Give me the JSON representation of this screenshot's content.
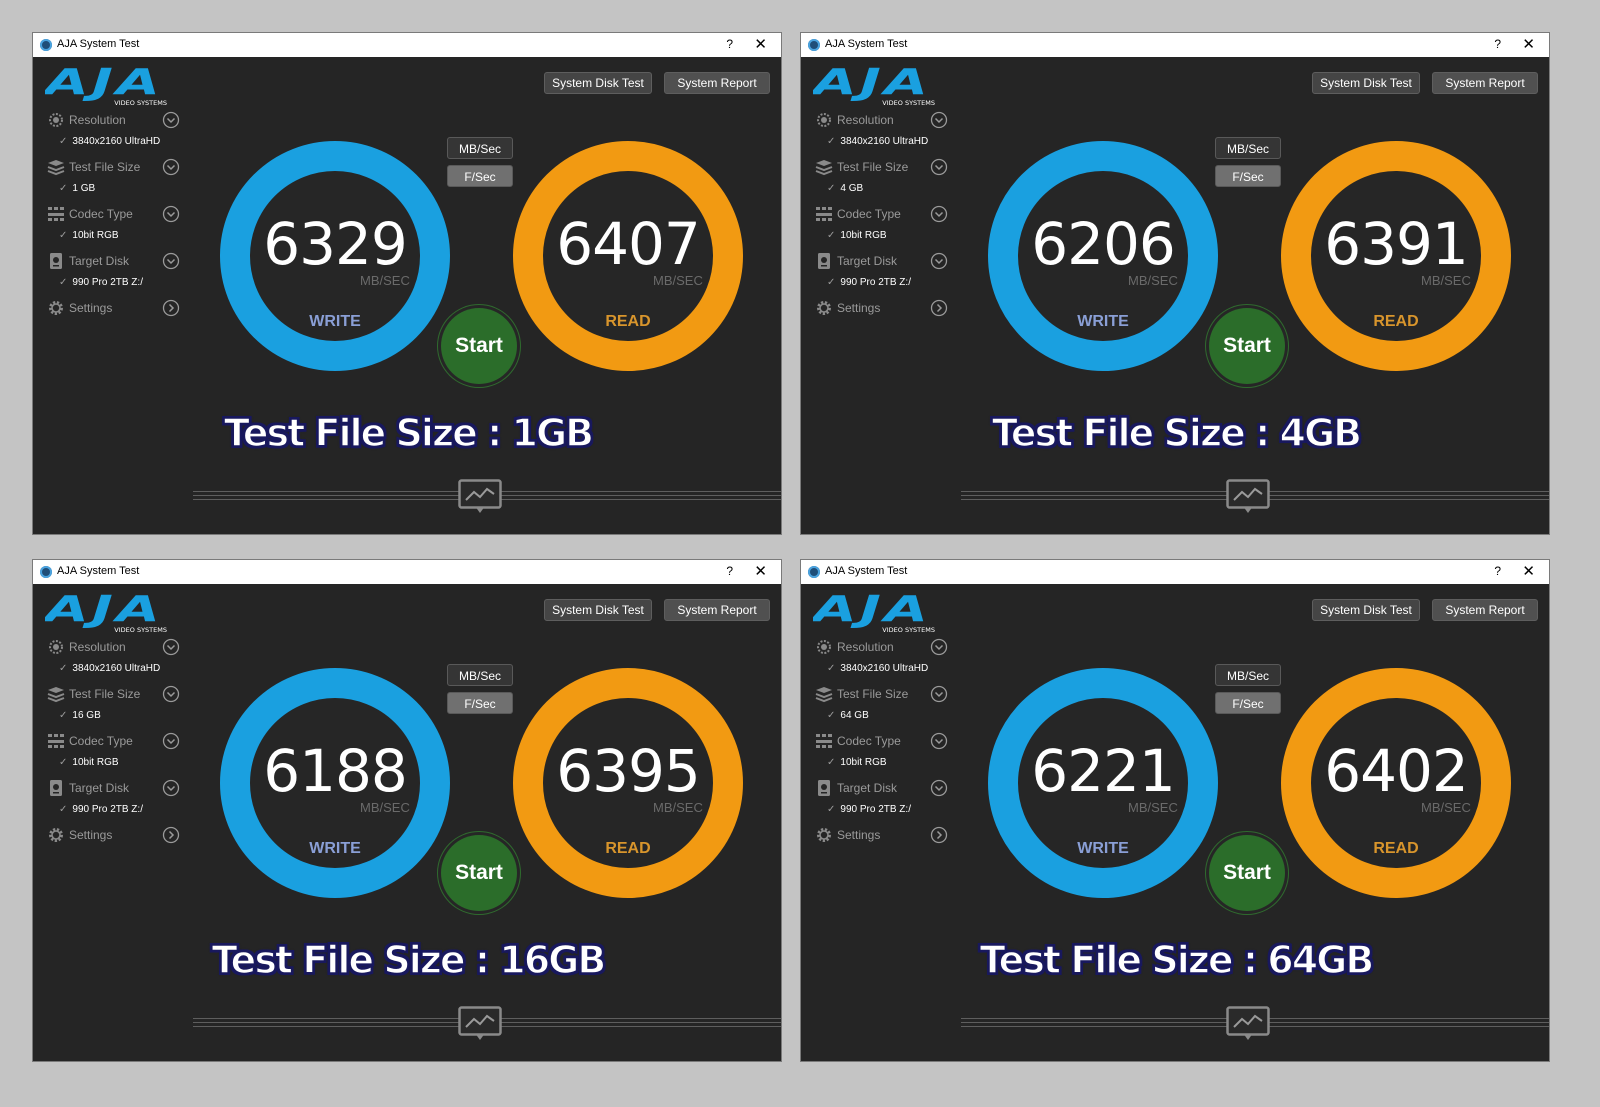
{
  "colors": {
    "write_ring": "#1aa0e0",
    "read_ring": "#f29a12",
    "start_button": "#2b6d2a",
    "window_bg": "#252525",
    "caption_outline": "#19195e"
  },
  "icons": {
    "app": "aja-app-icon",
    "help": "help-icon",
    "close": "close-icon",
    "resolution": "resolution-icon",
    "file_size": "file-size-stack-icon",
    "codec": "codec-grid-icon",
    "disk": "target-disk-icon",
    "settings": "gear-icon",
    "chevron": "chevron-down-icon",
    "chevron_right": "chevron-right-icon",
    "graph": "graph-toggle-icon"
  },
  "windows": [
    {
      "title": "AJA System Test",
      "help": "?",
      "close": "✕",
      "logo": {
        "text": "AJA",
        "subtext": "VIDEO SYSTEMS"
      },
      "toolbar": {
        "disk_test": "System Disk Test",
        "report": "System Report"
      },
      "menu": {
        "resolution": {
          "label": "Resolution",
          "value": "3840x2160 UltraHD"
        },
        "file_size": {
          "label": "Test File Size",
          "value": "1 GB"
        },
        "codec": {
          "label": "Codec Type",
          "value": "10bit RGB"
        },
        "disk": {
          "label": "Target Disk",
          "value": "990 Pro 2TB Z:/"
        },
        "settings": {
          "label": "Settings"
        },
        "check": "✓"
      },
      "units": {
        "mb": "MB/Sec",
        "fs": "F/Sec"
      },
      "write": {
        "value": "6329",
        "unit": "MB/SEC",
        "label": "WRITE"
      },
      "read": {
        "value": "6407",
        "unit": "MB/SEC",
        "label": "READ"
      },
      "start": "Start",
      "caption": "Test File Size : 1GB"
    },
    {
      "title": "AJA System Test",
      "help": "?",
      "close": "✕",
      "logo": {
        "text": "AJA",
        "subtext": "VIDEO SYSTEMS"
      },
      "toolbar": {
        "disk_test": "System Disk Test",
        "report": "System Report"
      },
      "menu": {
        "resolution": {
          "label": "Resolution",
          "value": "3840x2160 UltraHD"
        },
        "file_size": {
          "label": "Test File Size",
          "value": "4 GB"
        },
        "codec": {
          "label": "Codec Type",
          "value": "10bit RGB"
        },
        "disk": {
          "label": "Target Disk",
          "value": "990 Pro 2TB Z:/"
        },
        "settings": {
          "label": "Settings"
        },
        "check": "✓"
      },
      "units": {
        "mb": "MB/Sec",
        "fs": "F/Sec"
      },
      "write": {
        "value": "6206",
        "unit": "MB/SEC",
        "label": "WRITE"
      },
      "read": {
        "value": "6391",
        "unit": "MB/SEC",
        "label": "READ"
      },
      "start": "Start",
      "caption": "Test File Size : 4GB"
    },
    {
      "title": "AJA System Test",
      "help": "?",
      "close": "✕",
      "logo": {
        "text": "AJA",
        "subtext": "VIDEO SYSTEMS"
      },
      "toolbar": {
        "disk_test": "System Disk Test",
        "report": "System Report"
      },
      "menu": {
        "resolution": {
          "label": "Resolution",
          "value": "3840x2160 UltraHD"
        },
        "file_size": {
          "label": "Test File Size",
          "value": "16 GB"
        },
        "codec": {
          "label": "Codec Type",
          "value": "10bit RGB"
        },
        "disk": {
          "label": "Target Disk",
          "value": "990 Pro 2TB Z:/"
        },
        "settings": {
          "label": "Settings"
        },
        "check": "✓"
      },
      "units": {
        "mb": "MB/Sec",
        "fs": "F/Sec"
      },
      "write": {
        "value": "6188",
        "unit": "MB/SEC",
        "label": "WRITE"
      },
      "read": {
        "value": "6395",
        "unit": "MB/SEC",
        "label": "READ"
      },
      "start": "Start",
      "caption": "Test File Size : 16GB"
    },
    {
      "title": "AJA System Test",
      "help": "?",
      "close": "✕",
      "logo": {
        "text": "AJA",
        "subtext": "VIDEO SYSTEMS"
      },
      "toolbar": {
        "disk_test": "System Disk Test",
        "report": "System Report"
      },
      "menu": {
        "resolution": {
          "label": "Resolution",
          "value": "3840x2160 UltraHD"
        },
        "file_size": {
          "label": "Test File Size",
          "value": "64 GB"
        },
        "codec": {
          "label": "Codec Type",
          "value": "10bit RGB"
        },
        "disk": {
          "label": "Target Disk",
          "value": "990 Pro 2TB Z:/"
        },
        "settings": {
          "label": "Settings"
        },
        "check": "✓"
      },
      "units": {
        "mb": "MB/Sec",
        "fs": "F/Sec"
      },
      "write": {
        "value": "6221",
        "unit": "MB/SEC",
        "label": "WRITE"
      },
      "read": {
        "value": "6402",
        "unit": "MB/SEC",
        "label": "READ"
      },
      "start": "Start",
      "caption": "Test File Size : 64GB"
    }
  ]
}
